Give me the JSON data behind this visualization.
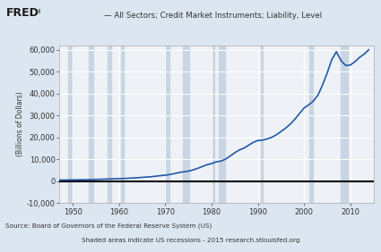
{
  "title": "— All Sectors; Credit Market Instruments; Liability, Level",
  "ylabel": "(Billions of Dollars)",
  "source_line1": "Source: Board of Governors of the Federal Reserve System (US)",
  "source_line2": "Shaded areas indicate US recessions - 2015 research.stlouisfed.org",
  "fred_text": "FRED",
  "xlim": [
    1947,
    2015
  ],
  "ylim": [
    -10000,
    62000
  ],
  "yticks": [
    -10000,
    0,
    10000,
    20000,
    30000,
    40000,
    50000,
    60000
  ],
  "xticks": [
    1950,
    1960,
    1970,
    1980,
    1990,
    2000,
    2010
  ],
  "bg_color": "#dce6f0",
  "plot_bg_color": "#eef2f7",
  "line_color": "#2158a8",
  "zero_line_color": "#000000",
  "recession_color": "#c9d5e2",
  "recession_bands": [
    [
      1948.917,
      1949.917
    ],
    [
      1953.5,
      1954.333
    ],
    [
      1957.583,
      1958.333
    ],
    [
      1960.333,
      1961.083
    ],
    [
      1969.917,
      1970.833
    ],
    [
      1973.833,
      1975.083
    ],
    [
      1980.0,
      1980.5
    ],
    [
      1981.5,
      1982.917
    ],
    [
      1990.583,
      1991.083
    ],
    [
      2001.167,
      2001.833
    ],
    [
      2007.917,
      2009.5
    ]
  ],
  "data_years": [
    1945,
    1946,
    1947,
    1948,
    1949,
    1950,
    1951,
    1952,
    1953,
    1954,
    1955,
    1956,
    1957,
    1958,
    1959,
    1960,
    1961,
    1962,
    1963,
    1964,
    1965,
    1966,
    1967,
    1968,
    1969,
    1970,
    1971,
    1972,
    1973,
    1974,
    1975,
    1976,
    1977,
    1978,
    1979,
    1980,
    1981,
    1982,
    1983,
    1984,
    1985,
    1986,
    1987,
    1988,
    1989,
    1990,
    1991,
    1992,
    1993,
    1994,
    1995,
    1996,
    1997,
    1998,
    1999,
    2000,
    2001,
    2002,
    2003,
    2004,
    2005,
    2006,
    2007,
    2008,
    2009,
    2010,
    2011,
    2012,
    2013,
    2014
  ],
  "data_values": [
    370,
    390,
    410,
    440,
    460,
    490,
    530,
    570,
    610,
    640,
    720,
    790,
    850,
    920,
    1010,
    1080,
    1150,
    1260,
    1370,
    1510,
    1660,
    1820,
    1970,
    2210,
    2470,
    2660,
    2970,
    3380,
    3890,
    4190,
    4520,
    5060,
    5780,
    6630,
    7420,
    7970,
    8730,
    9090,
    9960,
    11380,
    12890,
    14180,
    15020,
    16340,
    17650,
    18500,
    18680,
    19200,
    19960,
    21100,
    22600,
    24150,
    25960,
    28200,
    30800,
    33400,
    34800,
    36500,
    39200,
    43900,
    49300,
    55500,
    59100,
    55000,
    52800,
    53000,
    54500,
    56500,
    58000,
    60000
  ]
}
